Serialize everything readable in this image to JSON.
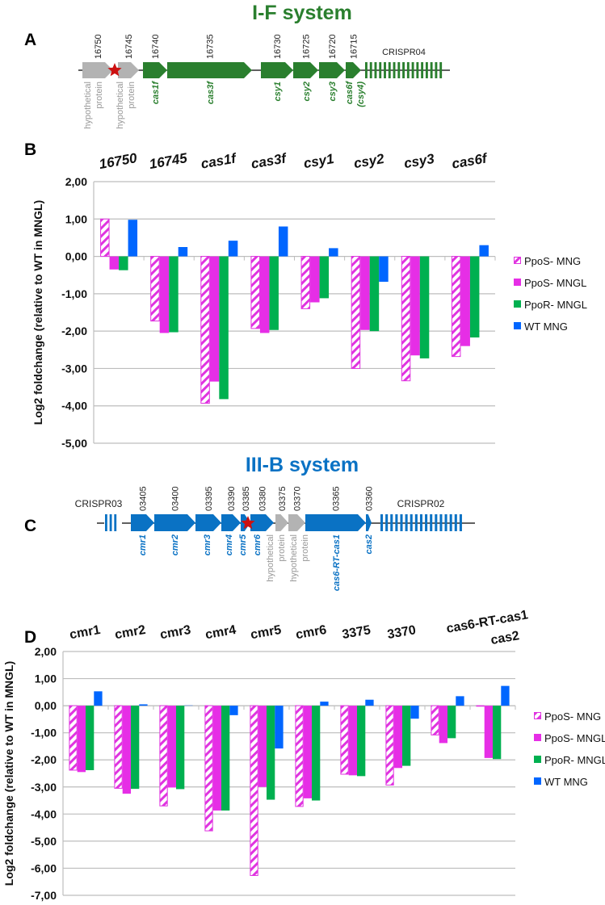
{
  "panels": {
    "a": "A",
    "b": "B",
    "c": "C",
    "d": "D"
  },
  "titles": {
    "if": "I-F system",
    "iiib": "III-B system"
  },
  "colors": {
    "if_green": "#2a7f2e",
    "iiib_blue": "#0a72c4",
    "hypothetical_gray": "#b3b3b3",
    "star_red": "#cc1111",
    "ppos_mng": "#e033e0",
    "ppos_mngl": "#e62ee6",
    "ppor_mngl": "#00b050",
    "wt_mng": "#0066ff"
  },
  "operon_if": {
    "crispr": "CRISPR04",
    "genes": [
      {
        "locus": "16750",
        "lines": [
          "hypothetical",
          "protein"
        ],
        "kind": "hypothetical"
      },
      {
        "locus": "16745",
        "lines": [
          "hypothetical",
          "protein"
        ],
        "kind": "hypothetical"
      },
      {
        "locus": "16740",
        "lines": [
          "cas1f"
        ],
        "kind": "cas"
      },
      {
        "locus": "16735",
        "lines": [
          "cas3f"
        ],
        "kind": "cas"
      },
      {
        "locus": "16730",
        "lines": [
          "csy1"
        ],
        "kind": "cas"
      },
      {
        "locus": "16725",
        "lines": [
          "csy2"
        ],
        "kind": "cas"
      },
      {
        "locus": "16720",
        "lines": [
          "csy3"
        ],
        "kind": "cas"
      },
      {
        "locus": "16715",
        "lines": [
          "cas6f",
          "(csy4)"
        ],
        "kind": "cas"
      }
    ]
  },
  "operon_iiib": {
    "crispr_left": "CRISPR03",
    "crispr_right": "CRISPR02",
    "genes": [
      {
        "locus": "03405",
        "lines": [
          "cmr1"
        ],
        "kind": "cas"
      },
      {
        "locus": "03400",
        "lines": [
          "cmr2"
        ],
        "kind": "cas"
      },
      {
        "locus": "03395",
        "lines": [
          "cmr3"
        ],
        "kind": "cas"
      },
      {
        "locus": "03390",
        "lines": [
          "cmr4"
        ],
        "kind": "cas"
      },
      {
        "locus": "03385",
        "lines": [
          "cmr5"
        ],
        "kind": "cas"
      },
      {
        "locus": "03380",
        "lines": [
          "cmr6"
        ],
        "kind": "cas"
      },
      {
        "locus": "03375",
        "lines": [
          "hypothetical",
          "protein"
        ],
        "kind": "hypothetical"
      },
      {
        "locus": "03370",
        "lines": [
          "hypothetical",
          "protein"
        ],
        "kind": "hypothetical"
      },
      {
        "locus": "03365",
        "lines": [
          "cas6-RT-cas1"
        ],
        "kind": "cas"
      },
      {
        "locus": "03360",
        "lines": [
          "cas2"
        ],
        "kind": "cas"
      }
    ]
  },
  "chart_data": [
    {
      "type": "bar",
      "title": "",
      "xlabel": "",
      "ylabel": "Log2 foldchange (relative  to WT in MNGL)",
      "ylim": [
        -5,
        2
      ],
      "yticks": [
        "2,00",
        "1,00",
        "0,00",
        "-1,00",
        "-2,00",
        "-3,00",
        "-4,00",
        "-5,00"
      ],
      "grid": true,
      "legend_position": "right",
      "categories": [
        "16750",
        "16745",
        "cas1f",
        "cas3f",
        "csy1",
        "csy2",
        "csy3",
        "cas6f"
      ],
      "series": [
        {
          "name": "PpoS-  MNG",
          "style": "hatched",
          "values": [
            1.0,
            -1.73,
            -3.93,
            -1.93,
            -1.4,
            -3.0,
            -3.33,
            -2.68
          ]
        },
        {
          "name": "PpoS- MNGL",
          "style": "solid",
          "values": [
            -0.35,
            -2.05,
            -3.35,
            -2.05,
            -1.23,
            -1.97,
            -2.65,
            -2.4
          ]
        },
        {
          "name": "PpoR- MNGL",
          "style": "solid",
          "values": [
            -0.37,
            -2.03,
            -3.82,
            -1.97,
            -1.12,
            -2.0,
            -2.73,
            -2.17
          ]
        },
        {
          "name": "WT MNG",
          "style": "solid",
          "values": [
            0.98,
            0.25,
            0.42,
            0.8,
            0.22,
            -0.68,
            0.0,
            0.3
          ]
        }
      ]
    },
    {
      "type": "bar",
      "title": "",
      "xlabel": "",
      "ylabel": "Log2 foldchange (relative to WT in MNGL)",
      "ylim": [
        -7,
        2
      ],
      "yticks": [
        "2,00",
        "1,00",
        "0,00",
        "-1,00",
        "-2,00",
        "-3,00",
        "-4,00",
        "-5,00",
        "-6,00",
        "-7,00"
      ],
      "grid": true,
      "legend_position": "right",
      "categories": [
        "cmr1",
        "cmr2",
        "cmr3",
        "cmr4",
        "cmr5",
        "cmr6",
        "3375",
        "3370",
        "cas6-RT-cas1",
        "cas2"
      ],
      "series": [
        {
          "name": "PpoS-  MNG",
          "style": "hatched",
          "values": [
            -2.38,
            -3.05,
            -3.7,
            -4.62,
            -6.27,
            -3.72,
            -2.53,
            -2.93,
            -1.08,
            -0.02
          ]
        },
        {
          "name": "PpoS- MNGL",
          "style": "solid",
          "values": [
            -2.45,
            -3.25,
            -3.02,
            -3.87,
            -3.0,
            -3.42,
            -2.57,
            -2.3,
            -1.38,
            -1.93
          ]
        },
        {
          "name": "PpoR- MNGL",
          "style": "solid",
          "values": [
            -2.38,
            -3.07,
            -3.08,
            -3.87,
            -3.47,
            -3.5,
            -2.6,
            -2.22,
            -1.2,
            -1.97
          ]
        },
        {
          "name": "WT MNG",
          "style": "solid",
          "values": [
            0.53,
            0.05,
            0.01,
            -0.35,
            -1.58,
            0.15,
            0.22,
            -0.48,
            0.35,
            0.73
          ]
        }
      ]
    }
  ]
}
